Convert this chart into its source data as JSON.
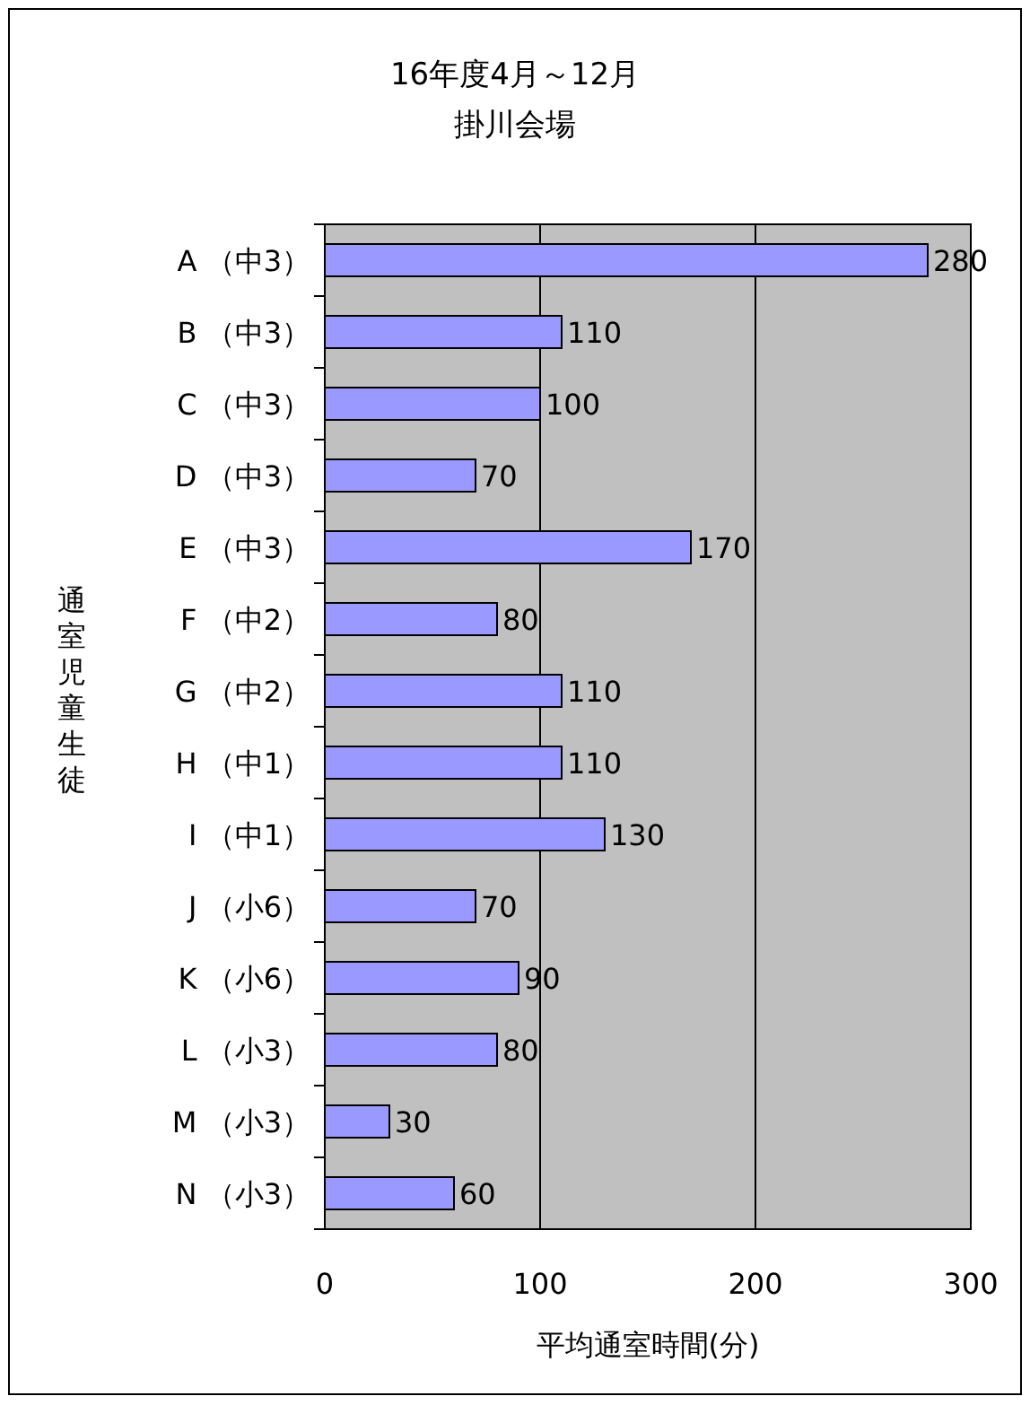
{
  "chart_data": {
    "type": "bar",
    "orientation": "horizontal",
    "title": "16年度4月～12月",
    "subtitle": "掛川会場",
    "xlabel": "平均通室時間(分)",
    "ylabel": "通室児童生徒",
    "categories": [
      "A （中3）",
      "B （中3）",
      "C （中3）",
      "D （中3）",
      "E （中3）",
      "F （中2）",
      "G （中2）",
      "H （中1）",
      "I （中1）",
      "J （小6）",
      "K （小6）",
      "L （小3）",
      "M （小3）",
      "N （小3）"
    ],
    "values": [
      280,
      110,
      100,
      70,
      170,
      80,
      110,
      110,
      130,
      70,
      90,
      80,
      30,
      60
    ],
    "color": "#9999ff",
    "xlim": [
      0,
      300
    ],
    "xticks": [
      0,
      100,
      200,
      300
    ],
    "grid": "x",
    "data_labels": true
  }
}
